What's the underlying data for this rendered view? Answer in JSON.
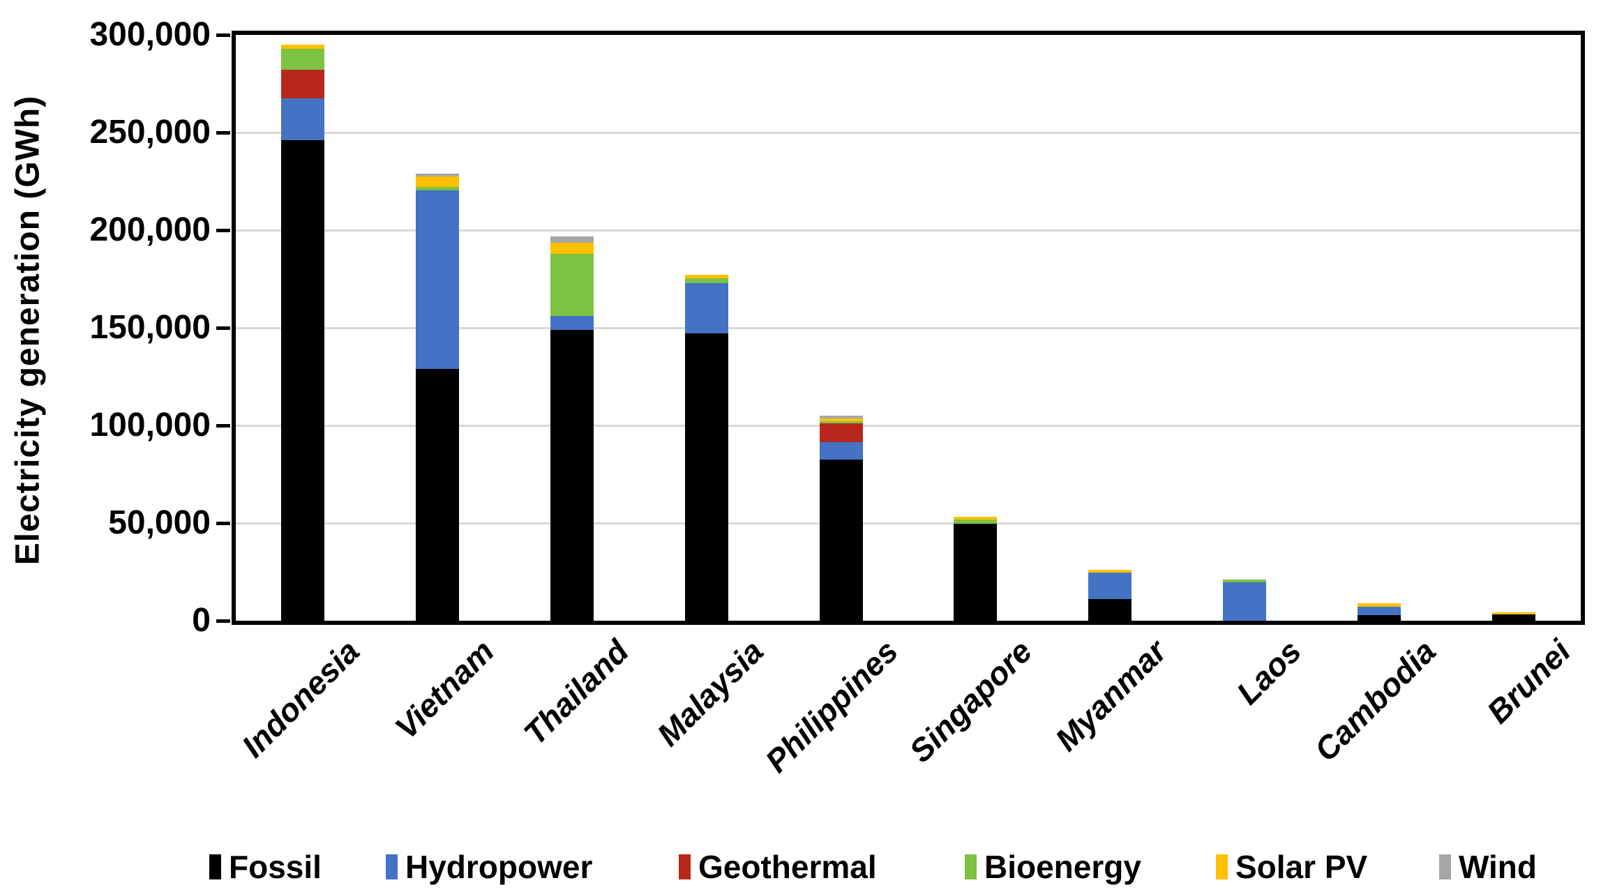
{
  "chart_data": {
    "type": "bar",
    "stacked": true,
    "title": "",
    "ylabel": "Electricity generation (GWh)",
    "xlabel": "",
    "ylim": [
      0,
      300000
    ],
    "ytick_step": 50000,
    "ytick_labels": [
      "0",
      "50,000",
      "100,000",
      "150,000",
      "200,000",
      "250,000",
      "300,000"
    ],
    "grid": true,
    "legend_position": "bottom",
    "categories": [
      "Indonesia",
      "Vietnam",
      "Thailand",
      "Malaysia",
      "Philippines",
      "Singapore",
      "Myanmar",
      "Laos",
      "Cambodia",
      "Brunei"
    ],
    "series": [
      {
        "name": "Fossil",
        "color": "#000000",
        "values": [
          246000,
          129000,
          149000,
          147000,
          82500,
          49500,
          11000,
          0,
          2900,
          3300
        ]
      },
      {
        "name": "Hydropower",
        "color": "#4472C4",
        "values": [
          21500,
          91500,
          7000,
          26000,
          9000,
          0,
          13500,
          19800,
          4300,
          0
        ]
      },
      {
        "name": "Geothermal",
        "color": "#B8271B",
        "values": [
          14500,
          0,
          0,
          0,
          9600,
          0,
          0,
          0,
          0,
          0
        ]
      },
      {
        "name": "Bioenergy",
        "color": "#7DC242",
        "values": [
          11000,
          1500,
          32000,
          2500,
          1200,
          2200,
          0,
          1300,
          0,
          0
        ]
      },
      {
        "name": "Solar PV",
        "color": "#FFC000",
        "values": [
          2000,
          5500,
          5500,
          1500,
          1300,
          1500,
          1500,
          0,
          1800,
          1000
        ]
      },
      {
        "name": "Wind",
        "color": "#A6A6A6",
        "values": [
          0,
          1500,
          3300,
          0,
          1500,
          0,
          0,
          0,
          0,
          0
        ]
      }
    ],
    "gridline_color": "#D9D9D9",
    "axis_color": "#000000"
  }
}
